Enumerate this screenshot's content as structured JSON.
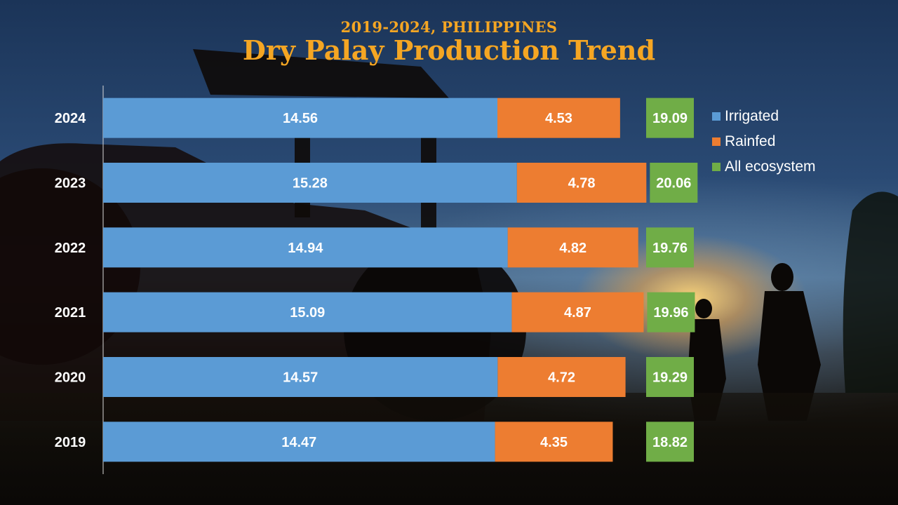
{
  "header": {
    "subtitle": "2019-2024, PHILIPPINES",
    "title": "Dry Palay Production Trend"
  },
  "colors": {
    "irrigated": "#5b9bd5",
    "rainfed": "#ed7d31",
    "all": "#70ad47",
    "accent": "#f5a623"
  },
  "chart_data": {
    "type": "bar",
    "orientation": "horizontal",
    "stacked": true,
    "categories": [
      "2024",
      "2023",
      "2022",
      "2021",
      "2020",
      "2019"
    ],
    "series": [
      {
        "name": "Irrigated",
        "values": [
          14.56,
          15.28,
          14.94,
          15.09,
          14.57,
          14.47
        ]
      },
      {
        "name": "Rainfed",
        "values": [
          4.53,
          4.78,
          4.82,
          4.87,
          4.72,
          4.35
        ]
      },
      {
        "name": "All ecosystem",
        "values": [
          19.09,
          20.06,
          19.76,
          19.96,
          19.29,
          18.82
        ]
      }
    ],
    "legend_position": "right",
    "grid": false
  }
}
